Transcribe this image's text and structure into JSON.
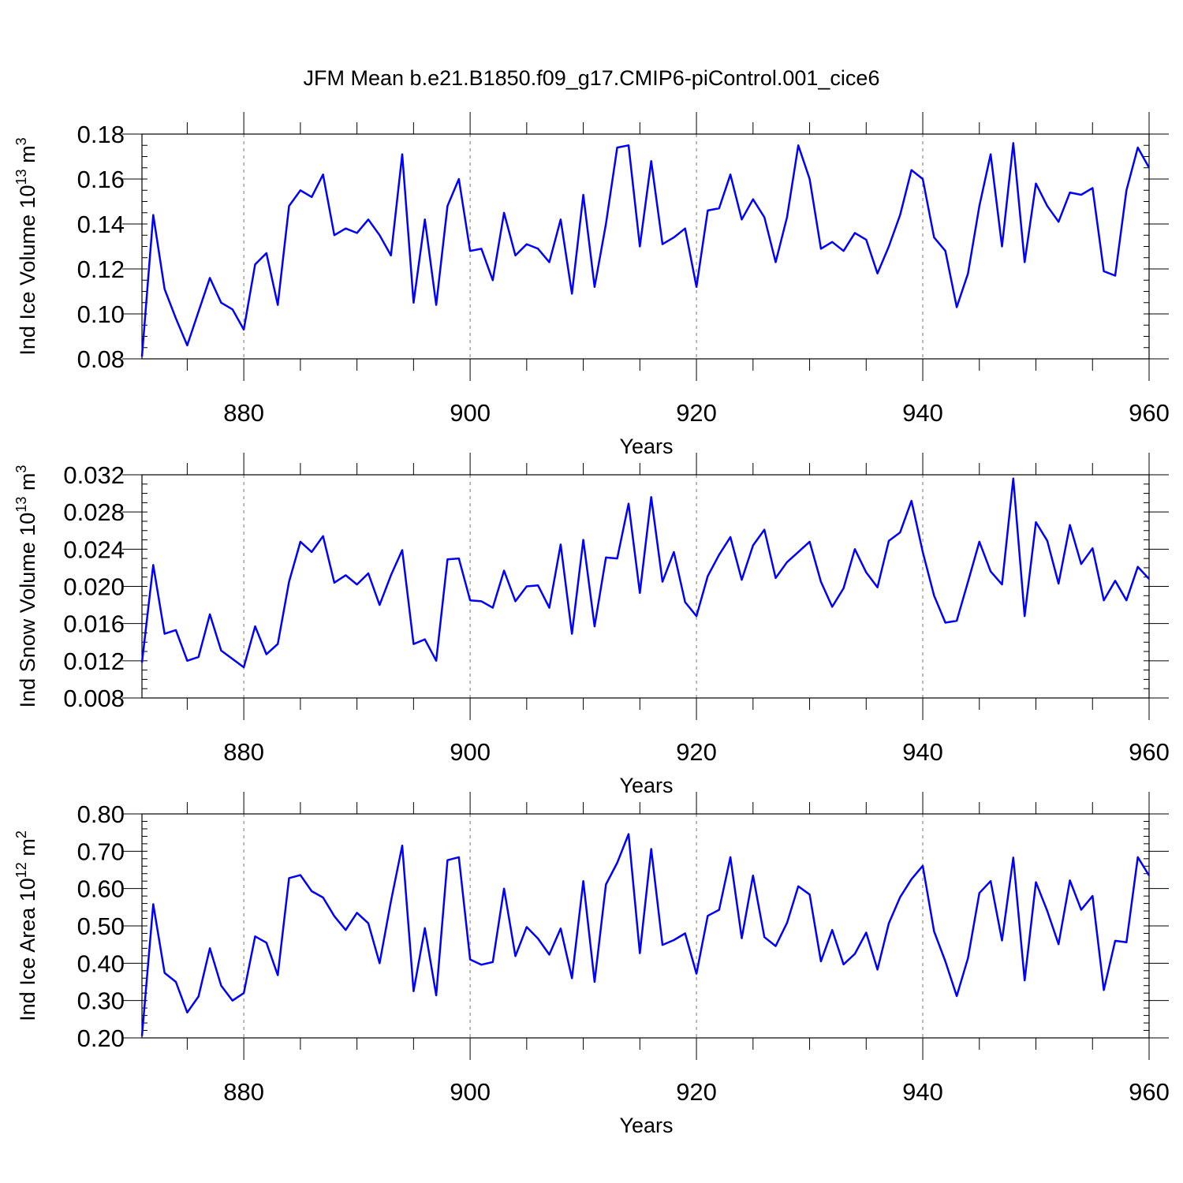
{
  "colors": {
    "line": "#0000ff",
    "axis": "#000000",
    "grid": "#777777",
    "background": "#ffffff"
  },
  "chart_data": {
    "title": "JFM Mean b.e21.B1850.f09_g17.CMIP6-piControl.001_cice6",
    "type": "line",
    "x": [
      871,
      872,
      873,
      874,
      875,
      876,
      877,
      878,
      879,
      880,
      881,
      882,
      883,
      884,
      885,
      886,
      887,
      888,
      889,
      890,
      891,
      892,
      893,
      894,
      895,
      896,
      897,
      898,
      899,
      900,
      901,
      902,
      903,
      904,
      905,
      906,
      907,
      908,
      909,
      910,
      911,
      912,
      913,
      914,
      915,
      916,
      917,
      918,
      919,
      920,
      921,
      922,
      923,
      924,
      925,
      926,
      927,
      928,
      929,
      930,
      931,
      932,
      933,
      934,
      935,
      936,
      937,
      938,
      939,
      940,
      941,
      942,
      943,
      944,
      945,
      946,
      947,
      948,
      949,
      950,
      951,
      952,
      953,
      954,
      955,
      956,
      957,
      958,
      959,
      960
    ],
    "panels": [
      {
        "id": "ice-volume",
        "ylabel_main": "Ind Ice Volume 10",
        "ylabel_exp": "13",
        "ylabel_unit": " m",
        "ylabel_unit_exp": "3",
        "xlabel": "Years",
        "xlim": [
          871,
          960
        ],
        "ylim": [
          0.08,
          0.18
        ],
        "yticks": [
          0.08,
          0.1,
          0.12,
          0.14,
          0.16,
          0.18
        ],
        "ytick_labels": [
          "0.08",
          "0.10",
          "0.12",
          "0.14",
          "0.16",
          "0.18"
        ],
        "yminor_step": 0.005,
        "xticks": [
          880,
          900,
          920,
          940,
          960
        ],
        "xtick_labels": [
          "880",
          "900",
          "920",
          "940",
          "960"
        ],
        "values": [
          0.081,
          0.144,
          0.111,
          0.098,
          0.086,
          0.101,
          0.116,
          0.105,
          0.102,
          0.093,
          0.122,
          0.127,
          0.104,
          0.148,
          0.155,
          0.152,
          0.162,
          0.135,
          0.138,
          0.136,
          0.142,
          0.135,
          0.126,
          0.171,
          0.105,
          0.142,
          0.104,
          0.148,
          0.16,
          0.128,
          0.129,
          0.115,
          0.145,
          0.126,
          0.131,
          0.129,
          0.123,
          0.142,
          0.109,
          0.153,
          0.112,
          0.14,
          0.174,
          0.175,
          0.13,
          0.168,
          0.131,
          0.134,
          0.138,
          0.112,
          0.146,
          0.147,
          0.162,
          0.142,
          0.151,
          0.143,
          0.123,
          0.143,
          0.175,
          0.16,
          0.129,
          0.132,
          0.128,
          0.136,
          0.133,
          0.118,
          0.13,
          0.144,
          0.164,
          0.16,
          0.134,
          0.128,
          0.103,
          0.118,
          0.148,
          0.171,
          0.13,
          0.176,
          0.123,
          0.158,
          0.148,
          0.141,
          0.154,
          0.153,
          0.156,
          0.119,
          0.117,
          0.155,
          0.174,
          0.165
        ]
      },
      {
        "id": "snow-volume",
        "ylabel_main": "Ind Snow Volume 10",
        "ylabel_exp": "13",
        "ylabel_unit": " m",
        "ylabel_unit_exp": "3",
        "xlabel": "Years",
        "xlim": [
          871,
          960
        ],
        "ylim": [
          0.008,
          0.032
        ],
        "yticks": [
          0.008,
          0.012,
          0.016,
          0.02,
          0.024,
          0.028,
          0.032
        ],
        "ytick_labels": [
          "0.008",
          "0.012",
          "0.016",
          "0.020",
          "0.024",
          "0.028",
          "0.032"
        ],
        "yminor_step": 0.001,
        "xticks": [
          880,
          900,
          920,
          940,
          960
        ],
        "xtick_labels": [
          "880",
          "900",
          "920",
          "940",
          "960"
        ],
        "values": [
          0.0118,
          0.0223,
          0.0149,
          0.0153,
          0.012,
          0.0124,
          0.017,
          0.0131,
          0.0122,
          0.0113,
          0.0157,
          0.0127,
          0.0138,
          0.0205,
          0.0248,
          0.0237,
          0.0254,
          0.0204,
          0.0212,
          0.0202,
          0.0214,
          0.018,
          0.0212,
          0.0239,
          0.0138,
          0.0143,
          0.012,
          0.0229,
          0.023,
          0.0185,
          0.0184,
          0.0177,
          0.0217,
          0.0184,
          0.02,
          0.0201,
          0.0177,
          0.0245,
          0.0149,
          0.025,
          0.0157,
          0.0231,
          0.023,
          0.0289,
          0.0193,
          0.0296,
          0.0205,
          0.0237,
          0.0183,
          0.0168,
          0.0211,
          0.0234,
          0.0253,
          0.0207,
          0.0244,
          0.0261,
          0.0209,
          0.0226,
          0.0237,
          0.0248,
          0.0205,
          0.0178,
          0.0198,
          0.024,
          0.0215,
          0.0199,
          0.0249,
          0.0258,
          0.0292,
          0.0237,
          0.019,
          0.0161,
          0.0163,
          0.0205,
          0.0248,
          0.0216,
          0.0202,
          0.0316,
          0.0168,
          0.0269,
          0.0249,
          0.0203,
          0.0266,
          0.0224,
          0.0241,
          0.0185,
          0.0206,
          0.0185,
          0.0221,
          0.0208
        ]
      },
      {
        "id": "ice-area",
        "ylabel_main": "Ind Ice Area 10",
        "ylabel_exp": "12",
        "ylabel_unit": " m",
        "ylabel_unit_exp": "2",
        "xlabel": "Years",
        "xlim": [
          871,
          960
        ],
        "ylim": [
          0.2,
          0.8
        ],
        "yticks": [
          0.2,
          0.3,
          0.4,
          0.5,
          0.6,
          0.7,
          0.8
        ],
        "ytick_labels": [
          "0.20",
          "0.30",
          "0.40",
          "0.50",
          "0.60",
          "0.70",
          "0.80"
        ],
        "yminor_step": 0.02,
        "xticks": [
          880,
          900,
          920,
          940,
          960
        ],
        "xtick_labels": [
          "880",
          "900",
          "920",
          "940",
          "960"
        ],
        "values": [
          0.205,
          0.558,
          0.374,
          0.35,
          0.268,
          0.311,
          0.44,
          0.34,
          0.3,
          0.32,
          0.472,
          0.455,
          0.368,
          0.628,
          0.636,
          0.593,
          0.576,
          0.526,
          0.489,
          0.535,
          0.507,
          0.4,
          0.566,
          0.715,
          0.325,
          0.494,
          0.314,
          0.676,
          0.684,
          0.41,
          0.396,
          0.403,
          0.6,
          0.419,
          0.497,
          0.466,
          0.423,
          0.493,
          0.36,
          0.62,
          0.35,
          0.611,
          0.669,
          0.746,
          0.427,
          0.706,
          0.449,
          0.462,
          0.48,
          0.372,
          0.527,
          0.543,
          0.684,
          0.467,
          0.635,
          0.47,
          0.446,
          0.508,
          0.606,
          0.584,
          0.405,
          0.489,
          0.397,
          0.425,
          0.482,
          0.383,
          0.507,
          0.577,
          0.625,
          0.661,
          0.485,
          0.405,
          0.312,
          0.414,
          0.588,
          0.62,
          0.461,
          0.683,
          0.354,
          0.617,
          0.54,
          0.451,
          0.622,
          0.543,
          0.58,
          0.328,
          0.46,
          0.456,
          0.684,
          0.635
        ]
      }
    ]
  }
}
